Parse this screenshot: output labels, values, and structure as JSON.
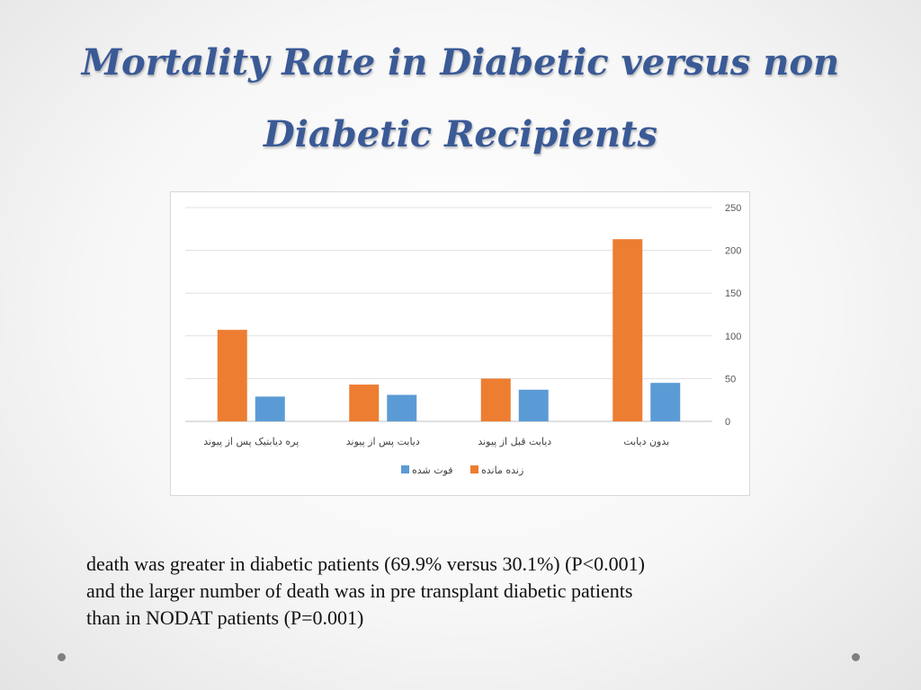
{
  "slide": {
    "title_line1": "Mortality Rate in Diabetic versus non",
    "title_line2": "Diabetic Recipients",
    "body_line1": "death was greater in diabetic patients (69.9% versus 30.1%) (P<0.001)",
    "body_line2": "and the larger number of death was in pre transplant diabetic patients",
    "body_line3": "than in NODAT patients (P=0.001)"
  },
  "chart_data": {
    "type": "bar",
    "title": "",
    "xlabel": "",
    "ylabel": "",
    "ylim": [
      0,
      250
    ],
    "yticks": [
      0,
      50,
      100,
      150,
      200,
      250
    ],
    "y_axis_side": "right",
    "grid": true,
    "legend_position": "bottom",
    "categories": [
      "پره دیابتیک پس از پیوند",
      "دیابت پس از پیوند",
      "دیابت قبل از پیوند",
      "بدون دیابت"
    ],
    "series": [
      {
        "name": "زنده مانده",
        "color": "#ed7d31",
        "values": [
          107,
          43,
          50,
          213
        ]
      },
      {
        "name": "فوت شده",
        "color": "#5b9bd5",
        "values": [
          29,
          31,
          37,
          45
        ]
      }
    ]
  }
}
